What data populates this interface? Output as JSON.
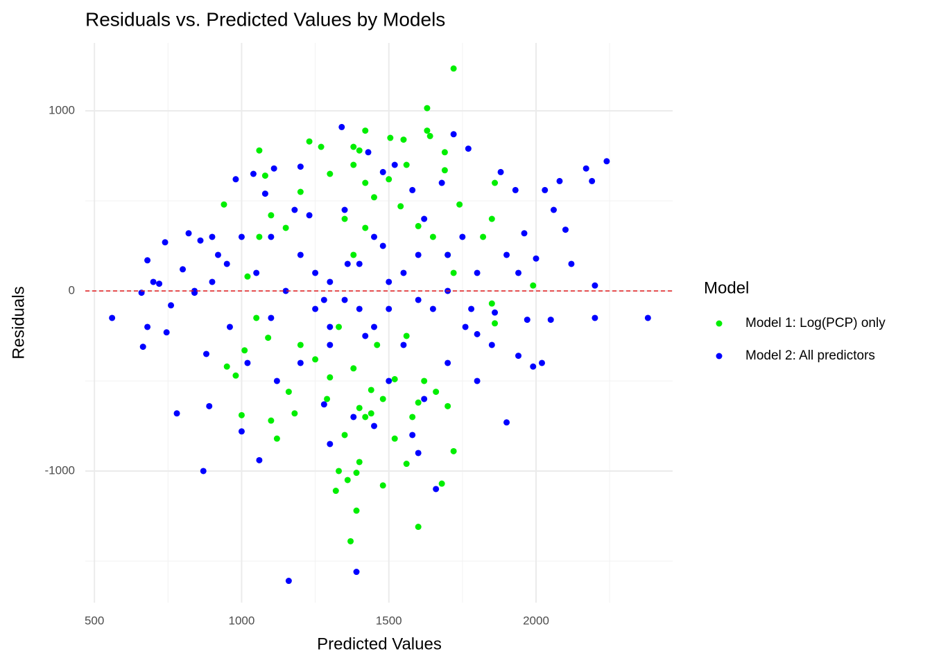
{
  "chart_data": {
    "type": "scatter",
    "title": "Residuals vs. Predicted Values by Models",
    "x_label": "Predicted Values",
    "y_label": "Residuals",
    "legend_title": "Model",
    "legend_position": "right",
    "xlim": [
      469,
      2464
    ],
    "ylim": [
      -1731,
      1377
    ],
    "xticks": [
      500,
      1000,
      1500,
      2000
    ],
    "yticks": [
      -1000,
      0,
      1000
    ],
    "x_minor_grid": [
      750,
      1250,
      1750,
      2250
    ],
    "y_minor_grid": [
      -1500,
      -500,
      500
    ],
    "grid": true,
    "hline": 0,
    "hline_color": "#e31a1c",
    "series": [
      {
        "name": "Model 1: Log(PCP) only",
        "color": "#00ee00",
        "x": [
          1720,
          1630,
          1630,
          1420,
          1505,
          1550,
          1640,
          1230,
          1270,
          1380,
          1400,
          1060,
          1690,
          1560,
          1690,
          1740,
          1860,
          1990,
          1860,
          1850,
          1720,
          1680,
          1600,
          1370,
          1390,
          1360,
          1320,
          1480,
          1400,
          1330,
          1390,
          1560,
          1520,
          1180,
          1120,
          1000,
          980,
          950,
          1010,
          1100,
          1160,
          1290,
          1440,
          1600,
          1700,
          1620,
          1520,
          1380,
          1440,
          1300,
          1250,
          1200,
          1090,
          1050,
          1020,
          1060,
          1100,
          1150,
          1200,
          1300,
          1380,
          1420,
          1450,
          1500,
          1540,
          1600,
          1650,
          1700,
          1720,
          1350,
          1420,
          1380,
          1330,
          1460,
          1560,
          1820,
          1850,
          940,
          1080,
          1420,
          1350,
          1400,
          1480,
          1580,
          1660
        ],
        "values": [
          1235,
          1015,
          890,
          890,
          850,
          840,
          860,
          830,
          800,
          800,
          780,
          780,
          770,
          700,
          670,
          480,
          600,
          30,
          -180,
          -70,
          -890,
          -1070,
          -1310,
          -1390,
          -1220,
          -1050,
          -1110,
          -1080,
          -950,
          -1000,
          -1010,
          -960,
          -820,
          -680,
          -820,
          -690,
          -470,
          -420,
          -330,
          -720,
          -560,
          -600,
          -680,
          -620,
          -640,
          -500,
          -490,
          -430,
          -550,
          -480,
          -380,
          -300,
          -260,
          -150,
          80,
          300,
          420,
          350,
          550,
          650,
          700,
          600,
          520,
          620,
          470,
          360,
          300,
          200,
          100,
          400,
          350,
          200,
          -200,
          -300,
          -250,
          300,
          400,
          480,
          640,
          -700,
          -800,
          -650,
          -600,
          -700,
          -560
        ]
      },
      {
        "name": "Model 2: All predictors",
        "color": "#0000ff",
        "x": [
          560,
          660,
          665,
          680,
          680,
          720,
          740,
          700,
          745,
          780,
          800,
          820,
          840,
          860,
          870,
          890,
          880,
          900,
          920,
          960,
          980,
          1000,
          1040,
          1060,
          1080,
          1110,
          1160,
          1200,
          1230,
          1280,
          1300,
          1340,
          1390,
          1430,
          1480,
          1520,
          1580,
          1660,
          1720,
          1770,
          1880,
          1900,
          1930,
          1940,
          1960,
          1990,
          2020,
          2030,
          2060,
          2080,
          2100,
          2120,
          2170,
          2190,
          2200,
          2200,
          2240,
          2380,
          1860,
          1800,
          1760,
          1700,
          1620,
          1550,
          1500,
          1450,
          1400,
          1350,
          1300,
          1250,
          1200,
          1150,
          1100,
          1050,
          1000,
          950,
          900,
          1300,
          1400,
          1500,
          1550,
          1600,
          1650,
          1700,
          1750,
          1800,
          1850,
          1900,
          1100,
          1200,
          1350,
          1450,
          1500,
          1600,
          1250,
          1120,
          1380,
          1600,
          1450,
          1300,
          840,
          760,
          1020,
          1180,
          1280,
          1420,
          1360,
          1480,
          1620,
          1700,
          1780,
          2050,
          1970,
          1940,
          2000,
          1800,
          1680,
          1580
        ],
        "values": [
          -150,
          -10,
          -310,
          -200,
          170,
          40,
          270,
          50,
          -230,
          -680,
          120,
          320,
          -10,
          280,
          -1000,
          -640,
          -350,
          300,
          200,
          -200,
          620,
          -780,
          650,
          -940,
          540,
          680,
          -1610,
          690,
          420,
          -630,
          -200,
          910,
          -1560,
          770,
          660,
          700,
          560,
          -1100,
          870,
          790,
          660,
          -730,
          560,
          -360,
          320,
          -420,
          -400,
          560,
          450,
          610,
          340,
          150,
          680,
          610,
          -150,
          30,
          720,
          -150,
          -120,
          -240,
          -200,
          -400,
          -600,
          -300,
          -500,
          -200,
          -100,
          -50,
          50,
          100,
          200,
          0,
          -150,
          100,
          300,
          150,
          50,
          -300,
          150,
          50,
          100,
          200,
          -100,
          0,
          300,
          100,
          -300,
          200,
          300,
          -400,
          450,
          300,
          -100,
          -50,
          -100,
          -500,
          -700,
          -900,
          -750,
          -850,
          0,
          -80,
          -400,
          450,
          -50,
          -250,
          150,
          250,
          400,
          200,
          -100,
          -160,
          -160,
          100,
          180,
          -500,
          600,
          -800
        ]
      }
    ]
  }
}
